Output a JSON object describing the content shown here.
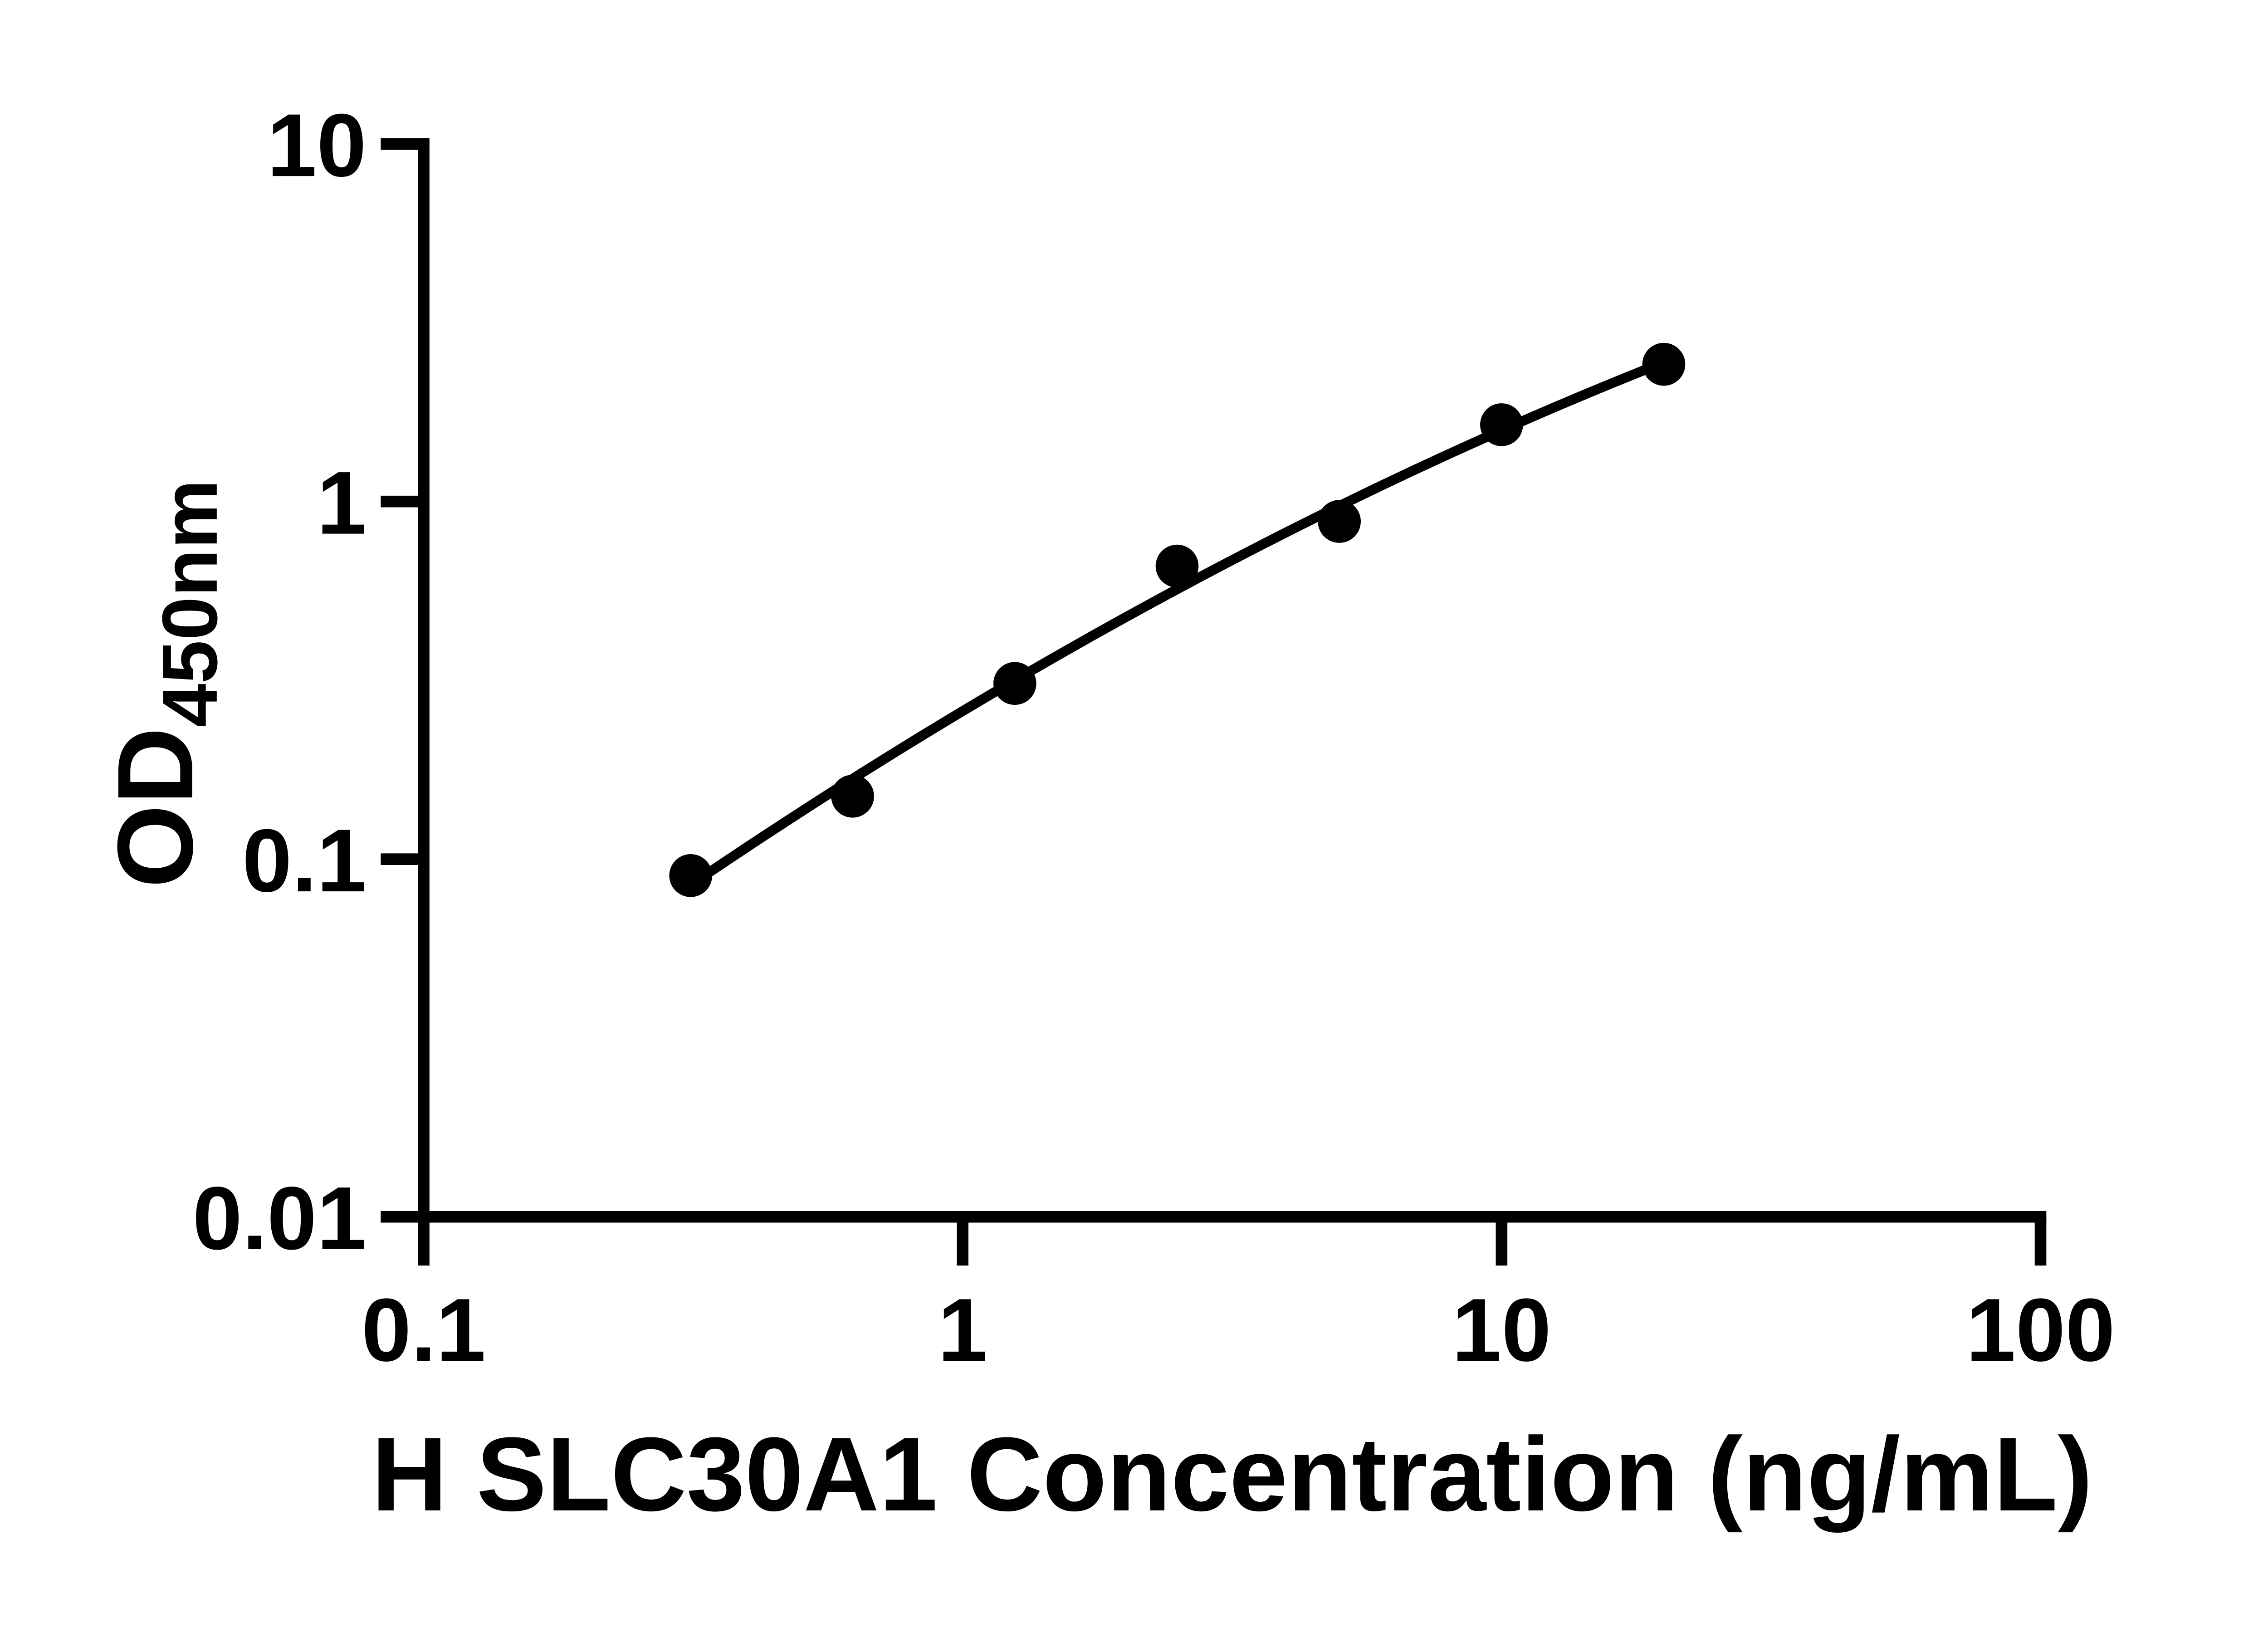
{
  "chart_data": {
    "type": "scatter",
    "title": "",
    "xlabel": "H SLC30A1 Concentration (ng/mL)",
    "ylabel_main": "OD",
    "ylabel_sub": "450nm",
    "x_scale": "log",
    "y_scale": "log",
    "xlim": [
      0.1,
      100
    ],
    "ylim": [
      0.01,
      10
    ],
    "x_ticks": [
      0.1,
      1,
      10,
      100
    ],
    "x_tick_labels": [
      "0.1",
      "1",
      "10",
      "100"
    ],
    "y_ticks": [
      10,
      1,
      0.1,
      0.01
    ],
    "y_tick_labels": [
      "10",
      "1",
      "0.1",
      "0.01"
    ],
    "x": [
      0.313,
      0.625,
      1.25,
      2.5,
      5,
      10,
      20
    ],
    "y": [
      0.09,
      0.15,
      0.31,
      0.66,
      0.88,
      1.64,
      2.42
    ],
    "curve": "smooth least-squares fit through data points (log-log)",
    "grid": false,
    "legend": false,
    "marker_color": "#000000",
    "curve_color": "#000000",
    "axis_color": "#000000",
    "background_color": "#ffffff"
  }
}
